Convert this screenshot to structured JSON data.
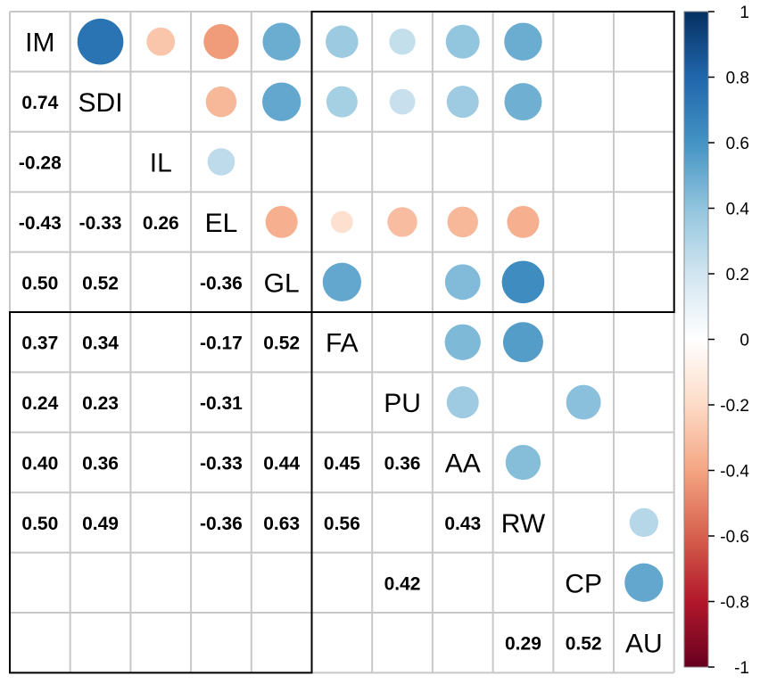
{
  "chart_data": {
    "type": "heatmap",
    "subtype": "correlation-matrix",
    "variables": [
      "IM",
      "SDI",
      "IL",
      "EL",
      "GL",
      "FA",
      "PU",
      "AA",
      "RW",
      "CP",
      "AU"
    ],
    "upper_style": "circles",
    "lower_style": "numbers",
    "colorbar": {
      "range": [
        -1,
        1
      ],
      "ticks": [
        "1",
        "0.8",
        "0.6",
        "0.4",
        "0.2",
        "0",
        "-0.2",
        "-0.4",
        "-0.6",
        "-0.8",
        "-1"
      ],
      "colors": [
        "#67001f",
        "#b2182b",
        "#d6604d",
        "#f4a582",
        "#fddbc7",
        "#ffffff",
        "#d1e5f0",
        "#92c5de",
        "#4393c3",
        "#2166ac",
        "#053061"
      ]
    },
    "correlations": [
      {
        "row": 1,
        "col": 0,
        "value": 0.74,
        "label": "0.74"
      },
      {
        "row": 2,
        "col": 0,
        "value": -0.28,
        "label": "-0.28"
      },
      {
        "row": 3,
        "col": 0,
        "value": -0.43,
        "label": "-0.43"
      },
      {
        "row": 3,
        "col": 1,
        "value": -0.33,
        "label": "-0.33"
      },
      {
        "row": 3,
        "col": 2,
        "value": 0.26,
        "label": "0.26"
      },
      {
        "row": 4,
        "col": 0,
        "value": 0.5,
        "label": "0.50"
      },
      {
        "row": 4,
        "col": 1,
        "value": 0.52,
        "label": "0.52"
      },
      {
        "row": 4,
        "col": 3,
        "value": -0.36,
        "label": "-0.36"
      },
      {
        "row": 5,
        "col": 0,
        "value": 0.37,
        "label": "0.37"
      },
      {
        "row": 5,
        "col": 1,
        "value": 0.34,
        "label": "0.34"
      },
      {
        "row": 5,
        "col": 3,
        "value": -0.17,
        "label": "-0.17"
      },
      {
        "row": 5,
        "col": 4,
        "value": 0.52,
        "label": "0.52"
      },
      {
        "row": 6,
        "col": 0,
        "value": 0.24,
        "label": "0.24"
      },
      {
        "row": 6,
        "col": 1,
        "value": 0.23,
        "label": "0.23"
      },
      {
        "row": 6,
        "col": 3,
        "value": -0.31,
        "label": "-0.31"
      },
      {
        "row": 7,
        "col": 0,
        "value": 0.4,
        "label": "0.40"
      },
      {
        "row": 7,
        "col": 1,
        "value": 0.36,
        "label": "0.36"
      },
      {
        "row": 7,
        "col": 3,
        "value": -0.33,
        "label": "-0.33"
      },
      {
        "row": 7,
        "col": 4,
        "value": 0.44,
        "label": "0.44"
      },
      {
        "row": 7,
        "col": 5,
        "value": 0.45,
        "label": "0.45"
      },
      {
        "row": 7,
        "col": 6,
        "value": 0.36,
        "label": "0.36"
      },
      {
        "row": 8,
        "col": 0,
        "value": 0.5,
        "label": "0.50"
      },
      {
        "row": 8,
        "col": 1,
        "value": 0.49,
        "label": "0.49"
      },
      {
        "row": 8,
        "col": 3,
        "value": -0.36,
        "label": "-0.36"
      },
      {
        "row": 8,
        "col": 4,
        "value": 0.63,
        "label": "0.63"
      },
      {
        "row": 8,
        "col": 5,
        "value": 0.56,
        "label": "0.56"
      },
      {
        "row": 8,
        "col": 7,
        "value": 0.43,
        "label": "0.43"
      },
      {
        "row": 9,
        "col": 6,
        "value": 0.42,
        "label": "0.42"
      },
      {
        "row": 10,
        "col": 8,
        "value": 0.29,
        "label": "0.29"
      },
      {
        "row": 10,
        "col": 9,
        "value": 0.52,
        "label": "0.52"
      }
    ],
    "clusters": [
      {
        "from": 0,
        "to": 4
      },
      {
        "from": 5,
        "to": 10
      }
    ]
  }
}
